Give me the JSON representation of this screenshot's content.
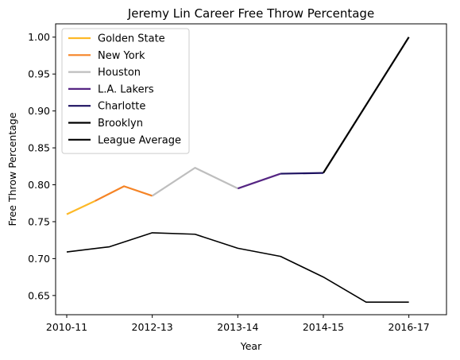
{
  "chart_data": {
    "type": "line",
    "title": "Jeremy Lin Career Free Throw Percentage",
    "xlabel": "Year",
    "ylabel": "Free Throw Percentage",
    "x_ticks": [
      "2010-11",
      "2012-13",
      "2013-14",
      "2014-15",
      "2016-17"
    ],
    "x_tick_positions": [
      0,
      1,
      2,
      3,
      4
    ],
    "xlim": [
      -0.13,
      4.44
    ],
    "ylim": [
      0.624,
      1.018
    ],
    "y_ticks": [
      0.65,
      0.7,
      0.75,
      0.8,
      0.85,
      0.9,
      0.95,
      1.0
    ],
    "y_tick_labels": [
      "0.65",
      "0.70",
      "0.75",
      "0.80",
      "0.85",
      "0.90",
      "0.95",
      "1.00"
    ],
    "grid": false,
    "legend_position": "top-left",
    "series": [
      {
        "name": "Golden State",
        "color": "#FDB927",
        "x": [
          0,
          0.33
        ],
        "y": [
          0.76,
          0.778
        ]
      },
      {
        "name": "New York",
        "color": "#F58426",
        "x": [
          0.33,
          0.67,
          1.0
        ],
        "y": [
          0.778,
          0.798,
          0.785
        ]
      },
      {
        "name": "Houston",
        "color": "#BEBEBE",
        "x": [
          1.0,
          1.5,
          2.0
        ],
        "y": [
          0.785,
          0.823,
          0.795
        ]
      },
      {
        "name": "L.A. Lakers",
        "color": "#552583",
        "x": [
          2.0,
          2.5
        ],
        "y": [
          0.795,
          0.815
        ]
      },
      {
        "name": "Charlotte",
        "color": "#1D1160",
        "x": [
          2.5,
          3.0
        ],
        "y": [
          0.815,
          0.816
        ]
      },
      {
        "name": "Brooklyn",
        "color": "#000000",
        "x": [
          3.0,
          4.0
        ],
        "y": [
          0.816,
          1.0
        ]
      },
      {
        "name": "League Average",
        "color": "#000000",
        "x": [
          0,
          0.5,
          1.0,
          1.5,
          2.0,
          2.5,
          3.0,
          3.5,
          4.0
        ],
        "y": [
          0.709,
          0.716,
          0.735,
          0.733,
          0.714,
          0.703,
          0.675,
          0.641,
          0.641
        ]
      }
    ]
  }
}
